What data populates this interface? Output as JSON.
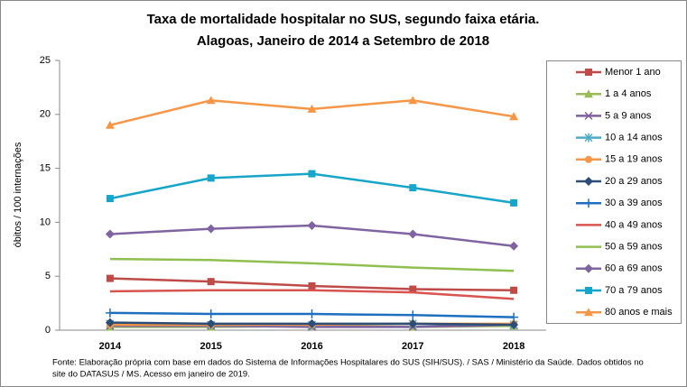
{
  "chart_data": {
    "type": "line",
    "title": [
      "Taxa de mortalidade hospitalar no SUS, segundo faixa etária.",
      "Alagoas, Janeiro de 2014 a Setembro de 2018"
    ],
    "y_label": "óbitos / 100 internações",
    "footnote": [
      "Fonte: Elaboração própria com base em dados do  Sistema de Informações Hospitalares do SUS (SIH/SUS). / SAS / Ministério da Saúde. Dados obtidos no",
      "site do DATASUS / MS. Acesso em janeiro de 2019."
    ],
    "categories": [
      "2014",
      "2015",
      "2016",
      "2017",
      "2018"
    ],
    "ylim": [
      0,
      25
    ],
    "yticks": [
      0,
      5,
      10,
      15,
      20,
      25
    ],
    "legend": "right",
    "series": [
      {
        "name": "Menor 1 ano",
        "color": "#be4b48",
        "marker": "square",
        "values": [
          4.8,
          4.5,
          4.1,
          3.8,
          3.7
        ]
      },
      {
        "name": "1 a 4 anos",
        "color": "#9bbb59",
        "marker": "triangle",
        "values": [
          0.3,
          0.3,
          0.4,
          0.3,
          0.4
        ]
      },
      {
        "name": "5 a 9 anos",
        "color": "#7d60a0",
        "marker": "x",
        "values": [
          0.4,
          0.4,
          0.3,
          0.3,
          0.5
        ]
      },
      {
        "name": "10 a 14 anos",
        "color": "#4bacc6",
        "marker": "asterisk",
        "values": [
          0.6,
          0.5,
          0.5,
          0.6,
          0.5
        ]
      },
      {
        "name": "15 a 19 anos",
        "color": "#f79646",
        "marker": "circle",
        "values": [
          0.5,
          0.5,
          0.5,
          0.6,
          0.6
        ]
      },
      {
        "name": "20 a 29 anos",
        "color": "#2c4d75",
        "marker": "diamond",
        "values": [
          0.7,
          0.6,
          0.6,
          0.6,
          0.5
        ]
      },
      {
        "name": "30 a 39 anos",
        "color": "#1f6fc0",
        "marker": "plus",
        "values": [
          1.6,
          1.5,
          1.5,
          1.4,
          1.2
        ]
      },
      {
        "name": "40 a 49 anos",
        "color": "#d9534f",
        "marker": "none",
        "values": [
          3.6,
          3.7,
          3.7,
          3.5,
          2.9
        ]
      },
      {
        "name": "50 a 59 anos",
        "color": "#8fbf4f",
        "marker": "none",
        "values": [
          6.6,
          6.5,
          6.2,
          5.8,
          5.5
        ]
      },
      {
        "name": "60 a 69 anos",
        "color": "#8064a2",
        "marker": "diamond",
        "values": [
          8.9,
          9.4,
          9.7,
          8.9,
          7.8
        ]
      },
      {
        "name": "70 a 79 anos",
        "color": "#17a5c9",
        "marker": "square",
        "values": [
          12.2,
          14.1,
          14.5,
          13.2,
          11.8
        ]
      },
      {
        "name": "80 anos e mais",
        "color": "#f79646",
        "marker": "triangle",
        "values": [
          19.0,
          21.3,
          20.5,
          21.3,
          19.8
        ]
      }
    ]
  }
}
